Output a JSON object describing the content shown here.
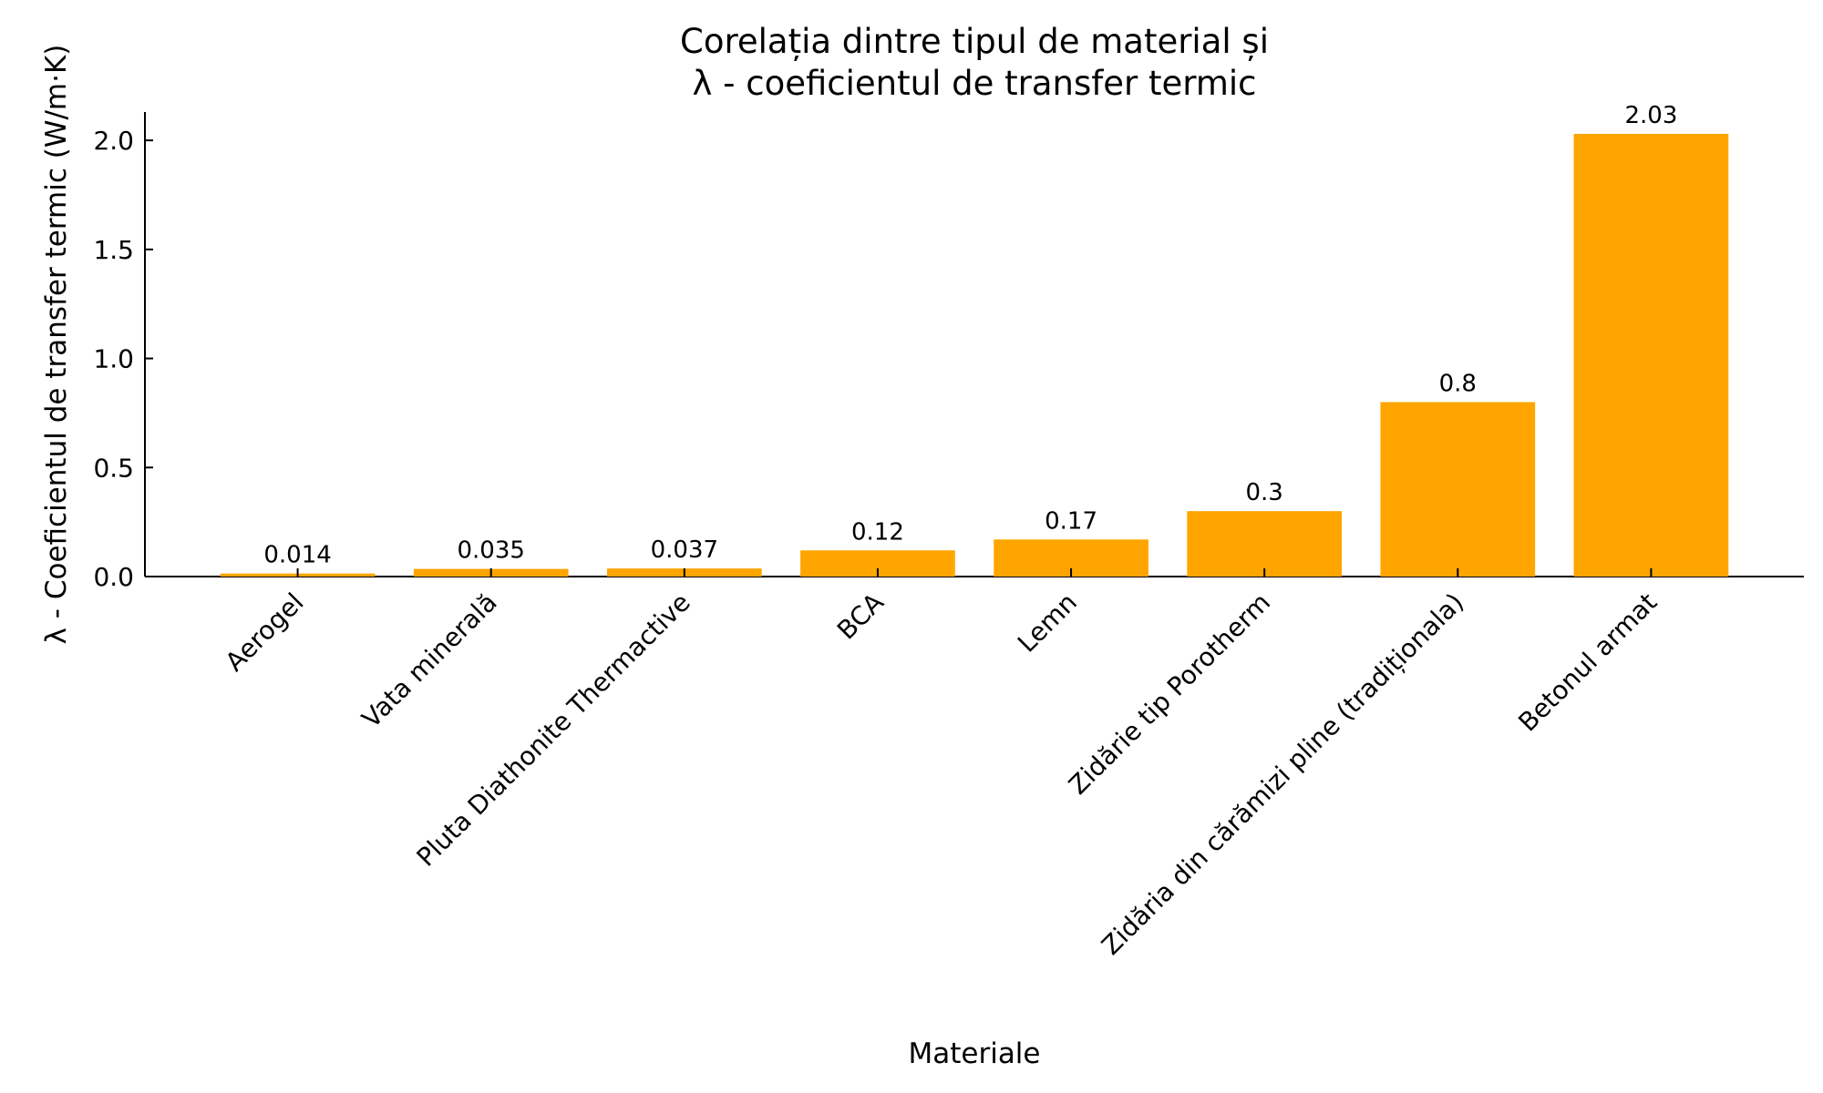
{
  "chart_data": {
    "type": "bar",
    "title": [
      "Corelația dintre tipul de material și",
      "λ - coeficientul de transfer termic"
    ],
    "x_label": "Materiale",
    "y_label": "λ - Coeficientul de transfer termic (W/m·K)",
    "categories": [
      "Aerogel",
      "Vata minerală",
      "Pluta Diathonite Thermactive",
      "BCA",
      "Lemn",
      "Zidărie tip Porotherm",
      "Zidăria din cărămizi pline (tradiționala)",
      "Betonul armat"
    ],
    "values": [
      0.014,
      0.035,
      0.037,
      0.12,
      0.17,
      0.3,
      0.8,
      2.03
    ],
    "color": "#ffa500",
    "ylim": [
      0,
      2.13
    ],
    "yticks": [
      {
        "value": 0,
        "label": "0.0"
      },
      {
        "value": 0.5,
        "label": "0.5"
      },
      {
        "value": 1,
        "label": "1.0"
      },
      {
        "value": 1.5,
        "label": "1.5"
      },
      {
        "value": 2,
        "label": "2.0"
      }
    ],
    "grid": false
  }
}
